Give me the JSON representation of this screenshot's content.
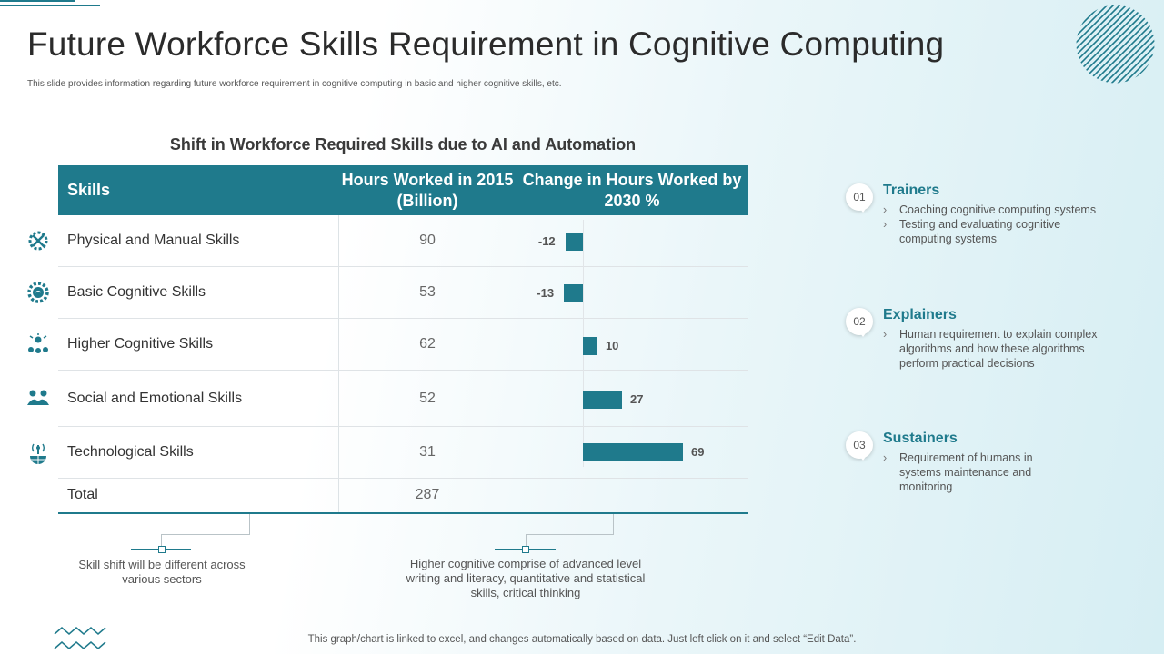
{
  "header": {
    "title": "Future Workforce Skills Requirement in Cognitive Computing",
    "subtitle": "This slide provides information regarding future workforce requirement in cognitive computing in basic and higher cognitive skills, etc."
  },
  "table": {
    "title": "Shift in Workforce Required Skills due to AI and Automation",
    "headers": {
      "skills": "Skills",
      "hours": "Hours Worked in 2015 (Billion)",
      "change": "Change in Hours Worked by 2030 %"
    },
    "rows": [
      {
        "skill": "Physical and Manual Skills",
        "hours": "90",
        "change": "-12",
        "icon": "tools-gear-icon"
      },
      {
        "skill": "Basic Cognitive Skills",
        "hours": "53",
        "change": "-13",
        "icon": "brain-gear-icon"
      },
      {
        "skill": "Higher Cognitive Skills",
        "hours": "62",
        "change": "10",
        "icon": "team-network-icon"
      },
      {
        "skill": "Social and Emotional Skills",
        "hours": "52",
        "change": "27",
        "icon": "handshake-icon"
      },
      {
        "skill": "Technological Skills",
        "hours": "31",
        "change": "69",
        "icon": "globe-antenna-icon"
      }
    ],
    "total": {
      "label": "Total",
      "hours": "287"
    }
  },
  "chart_data": {
    "type": "bar",
    "orientation": "horizontal",
    "title": "Change in Hours Worked by 2030 %",
    "categories": [
      "Physical and Manual Skills",
      "Basic Cognitive Skills",
      "Higher Cognitive Skills",
      "Social and Emotional Skills",
      "Technological Skills"
    ],
    "values": [
      -12,
      -13,
      10,
      27,
      69
    ],
    "xlim": [
      -20,
      80
    ]
  },
  "callouts": [
    {
      "text": "Skill shift will be different across various sectors"
    },
    {
      "text": "Higher cognitive comprise of advanced level writing and literacy, quantitative and statistical skills, critical thinking"
    }
  ],
  "roles": [
    {
      "num": "01",
      "title": "Trainers",
      "items": [
        "Coaching cognitive computing systems",
        "Testing and evaluating cognitive computing systems"
      ]
    },
    {
      "num": "02",
      "title": "Explainers",
      "items": [
        "Human requirement to explain complex algorithms and how these algorithms perform practical decisions"
      ]
    },
    {
      "num": "03",
      "title": "Sustainers",
      "items": [
        "Requirement of humans in systems maintenance and monitoring"
      ]
    }
  ],
  "footer": {
    "note": "This graph/chart is linked to excel, and changes automatically based on data. Just left click on it and select “Edit Data”."
  },
  "colors": {
    "accent": "#1f7a8c"
  }
}
